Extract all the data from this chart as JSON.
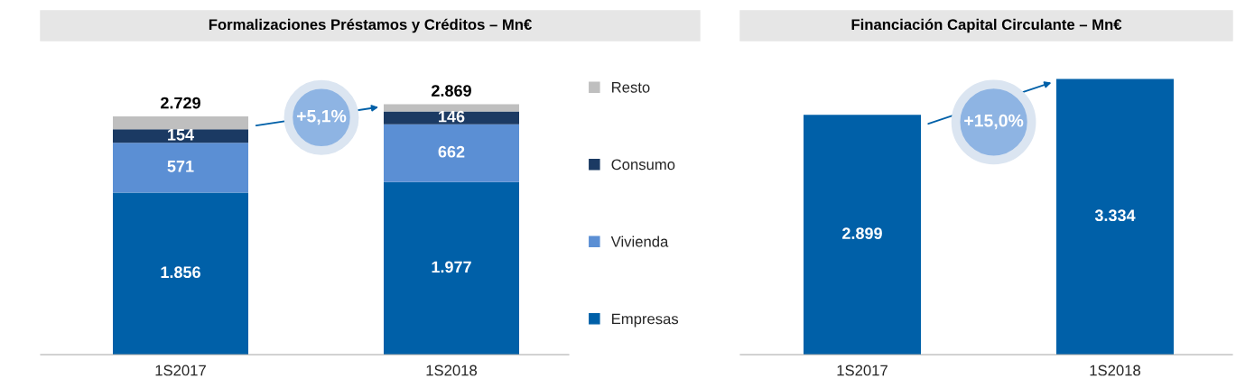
{
  "chart_data": [
    {
      "type": "bar",
      "title": "Formalizaciones Préstamos y Créditos – Mn€",
      "categories": [
        "1S2017",
        "1S2018"
      ],
      "stacked": true,
      "series": [
        {
          "name": "Empresas",
          "color": "#0060a8",
          "values": [
            1856,
            1977
          ],
          "value_labels": [
            "1.856",
            "1.977"
          ]
        },
        {
          "name": "Vivienda",
          "color": "#5b8fd4",
          "values": [
            571,
            662
          ],
          "value_labels": [
            "571",
            "662"
          ]
        },
        {
          "name": "Consumo",
          "color": "#1b3a63",
          "values": [
            154,
            146
          ],
          "value_labels": [
            "154",
            "146"
          ]
        },
        {
          "name": "Resto",
          "color": "#bfbfbf",
          "values": [
            148,
            84
          ],
          "value_labels": [
            null,
            null
          ]
        }
      ],
      "totals": [
        "2.729",
        "2.869"
      ],
      "annotations": [
        "+5,1%"
      ],
      "legend": "right",
      "tick_labels": "x"
    },
    {
      "type": "bar",
      "title": "Financiación Capital Circulante – Mn€",
      "categories": [
        "1S2017",
        "1S2018"
      ],
      "series": [
        {
          "color": "#0060a8",
          "values": [
            2899,
            3334
          ],
          "value_labels": [
            "2.899",
            "3.334"
          ]
        }
      ],
      "annotations": [
        "+15,0%"
      ],
      "tick_labels": "x"
    }
  ]
}
